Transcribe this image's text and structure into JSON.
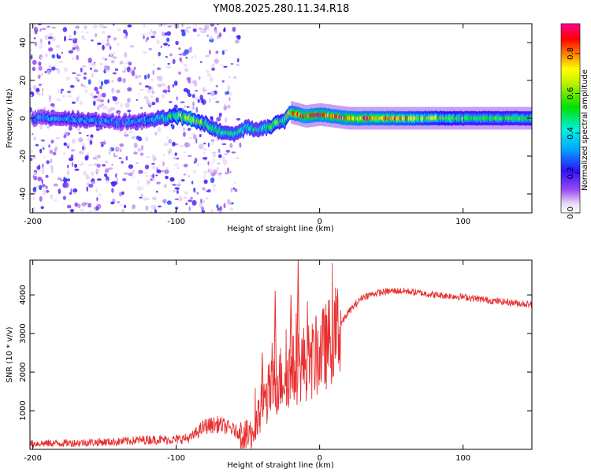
{
  "title": "YM08.2025.280.11.34.R18",
  "chart_data": [
    {
      "type": "heatmap",
      "title": "YM08.2025.280.11.34.R18",
      "xlabel": "Height of straight line (km)",
      "ylabel": "Frequency (Hz)",
      "xlim": [
        -202,
        148
      ],
      "ylim": [
        -50,
        50
      ],
      "xticks": [
        -200,
        -100,
        0,
        100
      ],
      "yticks": [
        -40,
        -20,
        0,
        20,
        40
      ],
      "colorbar": {
        "label": "Normalized spectral amplitude",
        "range": [
          0.0,
          0.95
        ],
        "ticks": [
          0.0,
          0.2,
          0.4,
          0.6,
          0.8
        ],
        "colormap": "rainbow (white-violet-blue-cyan-green-yellow-orange-red-magenta)"
      },
      "ridge": {
        "x": [
          -200,
          -180,
          -160,
          -140,
          -120,
          -100,
          -90,
          -80,
          -70,
          -60,
          -50,
          -40,
          -30,
          -25,
          -20,
          -10,
          0,
          20,
          60,
          100,
          148
        ],
        "freq": [
          0,
          0,
          -1,
          -2,
          -1,
          1,
          0,
          -3,
          -7,
          -8,
          -5,
          -6,
          -3,
          -2,
          3,
          1,
          2,
          0,
          0,
          0,
          0
        ],
        "amplitude": [
          0.3,
          0.35,
          0.35,
          0.3,
          0.35,
          0.6,
          0.75,
          0.55,
          0.5,
          0.45,
          0.45,
          0.45,
          0.6,
          0.5,
          0.8,
          0.9,
          0.85,
          0.85,
          0.75,
          0.55,
          0.55
        ]
      },
      "noise_region_km": [
        -202,
        -55
      ]
    },
    {
      "type": "line",
      "xlabel": "Height of straight line (km)",
      "ylabel": "SNR (10 * v/v)",
      "xlim": [
        -202,
        148
      ],
      "ylim": [
        0,
        4900
      ],
      "xticks": [
        -200,
        -100,
        0,
        100
      ],
      "yticks": [
        1000,
        2000,
        3000,
        4000
      ],
      "color": "#e83030",
      "series": [
        {
          "name": "SNR",
          "x": [
            -202,
            -180,
            -160,
            -140,
            -120,
            -100,
            -90,
            -80,
            -70,
            -60,
            -50,
            -45,
            -40,
            -35,
            -30,
            -25,
            -20,
            -15,
            -10,
            -5,
            0,
            5,
            10,
            15,
            20,
            25,
            30,
            40,
            50,
            60,
            70,
            80,
            100,
            120,
            148
          ],
          "y": [
            150,
            160,
            180,
            200,
            250,
            250,
            300,
            600,
            650,
            500,
            300,
            500,
            1100,
            1500,
            1700,
            1950,
            2000,
            2150,
            2250,
            2300,
            2500,
            2700,
            2950,
            3250,
            3550,
            3750,
            3950,
            4050,
            4100,
            4100,
            4050,
            4000,
            3950,
            3850,
            3750
          ],
          "spikes": [
            {
              "x": -31,
              "y": 4100
            },
            {
              "x": -15,
              "y": 4900
            },
            {
              "x": -20,
              "y": 4000
            },
            {
              "x": -40,
              "y": 2500
            },
            {
              "x": -55,
              "y": 700
            }
          ]
        }
      ]
    }
  ]
}
